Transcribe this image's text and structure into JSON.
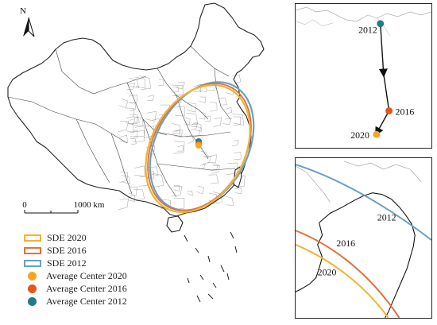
{
  "north_arrow": {
    "label": "N"
  },
  "scale_bar": {
    "start_label": "0",
    "end_label": "1000 km"
  },
  "colors": {
    "sde_2020": "#f2b233",
    "sde_2016": "#e0713a",
    "sde_2012": "#6a9fc6",
    "center_2020": "#f5a623",
    "center_2016": "#e8541a",
    "center_2012": "#1d7e86"
  },
  "legend": [
    {
      "kind": "ellipse",
      "label": "SDE  2020",
      "color_key": "sde_2020"
    },
    {
      "kind": "ellipse",
      "label": "SDE  2016",
      "color_key": "sde_2016"
    },
    {
      "kind": "ellipse",
      "label": "SDE  2012",
      "color_key": "sde_2012"
    },
    {
      "kind": "center",
      "label": "Average Center 2020",
      "color_key": "center_2020"
    },
    {
      "kind": "center",
      "label": "Average Center 2016",
      "color_key": "center_2016"
    },
    {
      "kind": "center",
      "label": "Average Center 2012",
      "color_key": "center_2012"
    }
  ],
  "trajectory_inset": {
    "label_2012": "2012",
    "label_2016": "2016",
    "label_2020": "2020"
  },
  "zoom_inset": {
    "label_2012": "2012",
    "label_2016": "2016",
    "label_2020": "2020"
  }
}
